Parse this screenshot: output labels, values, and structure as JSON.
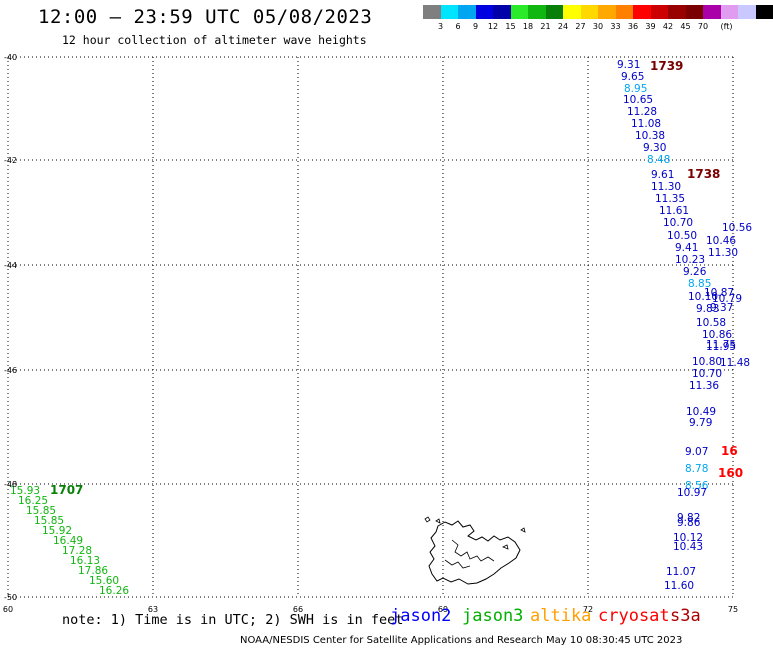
{
  "header": {
    "title": "12:00 — 23:59 UTC 05/08/2023",
    "subtitle": "12 hour collection of altimeter wave heights"
  },
  "legend": {
    "colors": [
      "#7f7f7f",
      "#00e5ff",
      "#00a6ef",
      "#0000e0",
      "#0000a8",
      "#2aea2a",
      "#11b711",
      "#087f08",
      "#ffff00",
      "#ffd800",
      "#ffa800",
      "#ff7f00",
      "#ff0000",
      "#cc0000",
      "#990000",
      "#7a0000",
      "#aa00aa",
      "#e09cef",
      "#c9c9ff",
      "#000000"
    ],
    "labels": [
      "3",
      "6",
      "9",
      "12",
      "15",
      "18",
      "21",
      "24",
      "27",
      "30",
      "33",
      "36",
      "39",
      "42",
      "45",
      "70",
      "(ft)"
    ]
  },
  "map": {
    "lat_labels": [
      "-40",
      "-42",
      "-44",
      "-46",
      "-48",
      "-50"
    ],
    "lon_labels": [
      "60",
      "63",
      "66",
      "69",
      "72",
      "75"
    ],
    "readings": [
      {
        "t": "9.31",
        "c": "#0000c8"
      },
      {
        "t": "9.65",
        "c": "#0000c8"
      },
      {
        "t": "8.95",
        "c": "#00a6ef"
      },
      {
        "t": "10.65",
        "c": "#0000c8"
      },
      {
        "t": "11.28",
        "c": "#0000c8"
      },
      {
        "t": "11.08",
        "c": "#0000c8"
      },
      {
        "t": "10.38",
        "c": "#0000c8"
      },
      {
        "t": "9.30",
        "c": "#0000c8"
      },
      {
        "t": "8.48",
        "c": "#00a6ef"
      },
      {
        "t": "9.61",
        "c": "#0000c8"
      },
      {
        "t": "11.30",
        "c": "#0000c8"
      },
      {
        "t": "11.35",
        "c": "#0000c8"
      },
      {
        "t": "11.61",
        "c": "#0000c8"
      },
      {
        "t": "10.70",
        "c": "#0000c8"
      },
      {
        "t": "10.50",
        "c": "#0000c8"
      },
      {
        "t": "9.41",
        "c": "#0000c8"
      },
      {
        "t": "10.23",
        "c": "#0000c8"
      },
      {
        "t": "9.26",
        "c": "#0000c8"
      },
      {
        "t": "8.85",
        "c": "#00a6ef"
      },
      {
        "t": "10.10",
        "c": "#0000c8"
      },
      {
        "t": "9.83",
        "c": "#0000c8"
      },
      {
        "t": "10.58",
        "c": "#0000c8"
      },
      {
        "t": "10.86",
        "c": "#0000c8"
      },
      {
        "t": "11.95",
        "c": "#0000c8"
      },
      {
        "t": "10.80",
        "c": "#0000c8"
      },
      {
        "t": "10.70",
        "c": "#0000c8"
      },
      {
        "t": "11.36",
        "c": "#0000c8"
      },
      {
        "t": "10.49",
        "c": "#0000c8"
      },
      {
        "t": "9.79",
        "c": "#0000c8"
      },
      {
        "t": "9.07",
        "c": "#0000c8"
      },
      {
        "t": "8.78",
        "c": "#00a6ef"
      },
      {
        "t": "8.56",
        "c": "#00a6ef"
      },
      {
        "t": "10.97",
        "c": "#0000c8"
      },
      {
        "t": "9.82",
        "c": "#0000c8"
      },
      {
        "t": "9.86",
        "c": "#0000c8"
      },
      {
        "t": "10.12",
        "c": "#0000c8"
      },
      {
        "t": "10.43",
        "c": "#0000c8"
      },
      {
        "t": "11.07",
        "c": "#0000c8"
      },
      {
        "t": "11.60",
        "c": "#0000c8"
      },
      {
        "t": "10.56",
        "c": "#0000c8"
      },
      {
        "t": "10.46",
        "c": "#0000c8"
      },
      {
        "t": "11.30",
        "c": "#0000c8"
      },
      {
        "t": "10.87",
        "c": "#0000c8"
      },
      {
        "t": "10.79",
        "c": "#0000c8"
      },
      {
        "t": "9.37",
        "c": "#0000c8"
      },
      {
        "t": "11.75",
        "c": "#0000c8"
      },
      {
        "t": "11.48",
        "c": "#0000c8"
      },
      {
        "t": "15.93",
        "c": "#11b711"
      },
      {
        "t": "16.25",
        "c": "#11b711"
      },
      {
        "t": "15.85",
        "c": "#11b711"
      },
      {
        "t": "15.85",
        "c": "#11b711"
      },
      {
        "t": "15.92",
        "c": "#11b711"
      },
      {
        "t": "16.49",
        "c": "#11b711"
      },
      {
        "t": "17.28",
        "c": "#11b711"
      },
      {
        "t": "16.13",
        "c": "#11b711"
      },
      {
        "t": "17.86",
        "c": "#11b711"
      },
      {
        "t": "15.60",
        "c": "#11b711"
      },
      {
        "t": "16.26",
        "c": "#11b711"
      }
    ],
    "time_labels": [
      {
        "t": "1739",
        "c": "#7a0000"
      },
      {
        "t": "1738",
        "c": "#7a0000"
      },
      {
        "t": "1707",
        "c": "#087f08"
      },
      {
        "t": "16",
        "c": "#ff0000"
      },
      {
        "t": "160",
        "c": "#ff0000"
      }
    ]
  },
  "note": "note: 1) Time is in UTC; 2) SWH is in feet",
  "satellites": [
    {
      "name": "jason2",
      "color": "#0000ff"
    },
    {
      "name": "jason3",
      "color": "#00b000"
    },
    {
      "name": "altika",
      "color": "#ffa000"
    },
    {
      "name": "cryosat",
      "color": "#ff0000"
    },
    {
      "name": "s3a",
      "color": "#aa0000"
    }
  ],
  "footer": "NOAA/NESDIS Center for Satellite Applications and Research    May 10 08:30:45 UTC 2023"
}
